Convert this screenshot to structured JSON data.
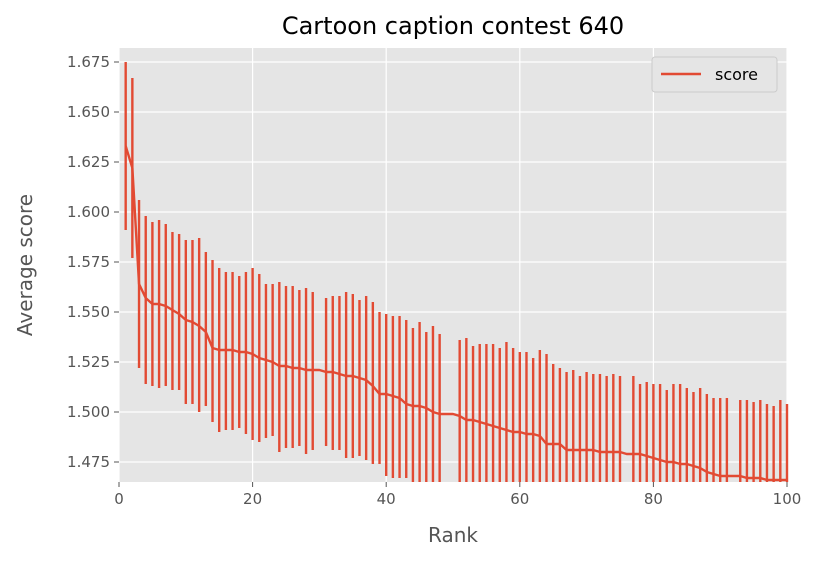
{
  "chart_data": {
    "type": "line",
    "title": "Cartoon caption contest 640",
    "xlabel": "Rank",
    "ylabel": "Average score",
    "xlim": [
      0,
      100
    ],
    "ylim": [
      1.465,
      1.682
    ],
    "xticks": [
      0,
      20,
      40,
      60,
      80,
      100
    ],
    "yticks": [
      1.475,
      1.5,
      1.525,
      1.55,
      1.575,
      1.6,
      1.625,
      1.65,
      1.675
    ],
    "xtick_labels": [
      "0",
      "20",
      "40",
      "60",
      "80",
      "100"
    ],
    "ytick_labels": [
      "1.475",
      "1.500",
      "1.525",
      "1.550",
      "1.575",
      "1.600",
      "1.625",
      "1.650",
      "1.675"
    ],
    "grid": true,
    "legend": {
      "position": "top-right",
      "entries": [
        "score"
      ]
    },
    "series": [
      {
        "name": "score",
        "color": "#e24a33",
        "x": [
          1,
          2,
          3,
          4,
          5,
          6,
          7,
          8,
          9,
          10,
          11,
          12,
          13,
          14,
          15,
          16,
          17,
          18,
          19,
          20,
          21,
          22,
          23,
          24,
          25,
          26,
          27,
          28,
          29,
          30,
          31,
          32,
          33,
          34,
          35,
          36,
          37,
          38,
          39,
          40,
          41,
          42,
          43,
          44,
          45,
          46,
          47,
          48,
          49,
          50,
          51,
          52,
          53,
          54,
          55,
          56,
          57,
          58,
          59,
          60,
          61,
          62,
          63,
          64,
          65,
          66,
          67,
          68,
          69,
          70,
          71,
          72,
          73,
          74,
          75,
          76,
          77,
          78,
          79,
          80,
          81,
          82,
          83,
          84,
          85,
          86,
          87,
          88,
          89,
          90,
          91,
          92,
          93,
          94,
          95,
          96,
          97,
          98,
          99,
          100
        ],
        "y": [
          1.633,
          1.622,
          1.564,
          1.557,
          1.554,
          1.554,
          1.553,
          1.551,
          1.549,
          1.546,
          1.545,
          1.543,
          1.54,
          1.532,
          1.531,
          1.531,
          1.531,
          1.53,
          1.53,
          1.529,
          1.527,
          1.526,
          1.525,
          1.523,
          1.523,
          1.522,
          1.522,
          1.521,
          1.521,
          1.521,
          1.52,
          1.52,
          1.519,
          1.518,
          1.518,
          1.517,
          1.516,
          1.513,
          1.509,
          1.509,
          1.508,
          1.507,
          1.504,
          1.503,
          1.503,
          1.502,
          1.5,
          1.499,
          1.499,
          1.499,
          1.498,
          1.496,
          1.496,
          1.495,
          1.494,
          1.493,
          1.492,
          1.491,
          1.49,
          1.49,
          1.489,
          1.489,
          1.488,
          1.484,
          1.484,
          1.484,
          1.481,
          1.481,
          1.481,
          1.481,
          1.481,
          1.48,
          1.48,
          1.48,
          1.48,
          1.479,
          1.479,
          1.479,
          1.478,
          1.477,
          1.476,
          1.475,
          1.475,
          1.474,
          1.474,
          1.473,
          1.472,
          1.47,
          1.469,
          1.468,
          1.468,
          1.468,
          1.468,
          1.467,
          1.467,
          1.467,
          1.466,
          1.466,
          1.466,
          1.466
        ],
        "err_low": [
          1.591,
          1.577,
          1.522,
          1.514,
          1.513,
          1.512,
          1.513,
          1.511,
          1.511,
          1.504,
          1.504,
          1.5,
          1.503,
          1.495,
          1.49,
          1.491,
          1.491,
          1.492,
          1.489,
          1.486,
          1.485,
          1.487,
          1.488,
          1.48,
          1.482,
          1.482,
          1.483,
          1.479,
          1.481,
          null,
          1.483,
          1.481,
          1.481,
          1.477,
          1.477,
          1.478,
          1.476,
          1.474,
          1.474,
          1.468,
          1.467,
          1.467,
          1.467,
          1.465,
          1.465,
          1.465,
          1.465,
          1.465,
          null,
          null,
          1.465,
          1.465,
          1.465,
          1.465,
          1.465,
          1.465,
          1.465,
          1.465,
          1.465,
          1.465,
          1.465,
          1.465,
          1.465,
          1.465,
          1.465,
          1.465,
          1.465,
          1.465,
          1.465,
          1.465,
          1.465,
          1.465,
          1.465,
          1.465,
          1.465,
          null,
          1.465,
          1.465,
          1.465,
          1.465,
          1.465,
          1.465,
          1.465,
          1.465,
          1.465,
          1.465,
          1.465,
          1.465,
          1.465,
          1.465,
          1.465,
          null,
          1.465,
          1.465,
          1.465,
          1.465,
          1.465,
          1.465,
          1.465,
          1.465
        ],
        "err_high": [
          1.675,
          1.667,
          1.606,
          1.598,
          1.595,
          1.596,
          1.594,
          1.59,
          1.589,
          1.586,
          1.586,
          1.587,
          1.58,
          1.576,
          1.572,
          1.57,
          1.57,
          1.568,
          1.57,
          1.572,
          1.569,
          1.564,
          1.564,
          1.565,
          1.563,
          1.563,
          1.561,
          1.562,
          1.56,
          null,
          1.557,
          1.558,
          1.558,
          1.56,
          1.559,
          1.556,
          1.558,
          1.555,
          1.55,
          1.549,
          1.548,
          1.548,
          1.546,
          1.542,
          1.545,
          1.54,
          1.543,
          1.539,
          null,
          null,
          1.536,
          1.537,
          1.533,
          1.534,
          1.534,
          1.534,
          1.532,
          1.535,
          1.532,
          1.53,
          1.53,
          1.527,
          1.531,
          1.529,
          1.524,
          1.522,
          1.52,
          1.521,
          1.518,
          1.52,
          1.519,
          1.519,
          1.518,
          1.519,
          1.518,
          null,
          1.518,
          1.514,
          1.515,
          1.514,
          1.514,
          1.511,
          1.514,
          1.514,
          1.512,
          1.51,
          1.512,
          1.509,
          1.507,
          1.507,
          1.507,
          null,
          1.506,
          1.506,
          1.505,
          1.506,
          1.504,
          1.503,
          1.506,
          1.504
        ]
      }
    ]
  }
}
